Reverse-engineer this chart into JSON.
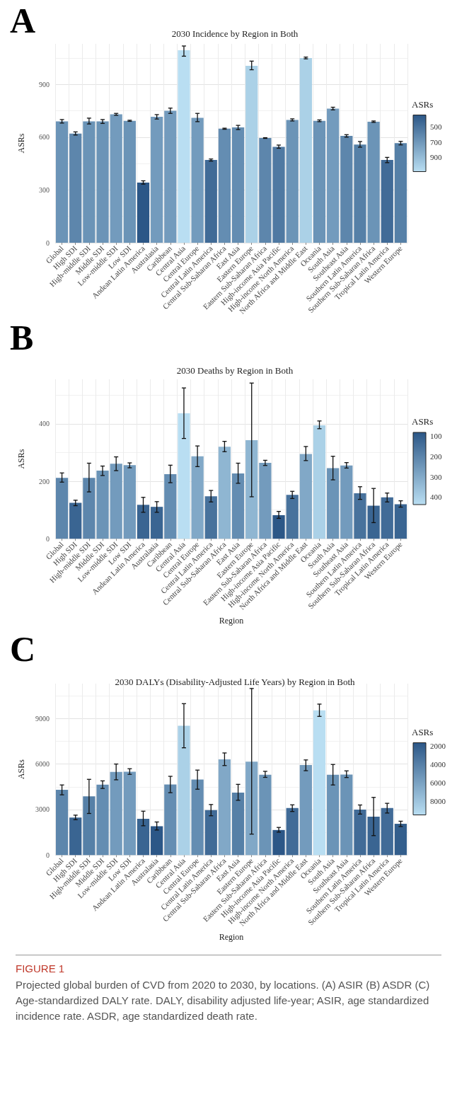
{
  "chart_data": [
    {
      "type": "bar",
      "title": "2030 Incidence by Region in Both",
      "ylabel": "ASRs",
      "legend_title": "ASRs",
      "annotations": [
        "A"
      ],
      "categories": [
        "Global",
        "High SDI",
        "High-middle SDI",
        "Middle SDI",
        "Low-middle SDI",
        "Low SDI",
        "Andean Latin America",
        "Australasia",
        "Caribbean",
        "Central Asia",
        "Central Europe",
        "Central Latin America",
        "Central Sub-Saharan Africa",
        "East Asia",
        "Eastern Europe",
        "Eastern Sub-Saharan Africa",
        "High-income Asia Pacific",
        "High-income North America",
        "North Africa and Middle East",
        "Oceania",
        "South Asia",
        "Southeast Asia",
        "Southern Latin America",
        "Southern Sub-Saharan Africa",
        "Tropical Latin America",
        "Western Europe"
      ],
      "values": [
        690,
        620,
        690,
        690,
        730,
        693,
        342,
        716,
        750,
        1094,
        710,
        470,
        648,
        655,
        1005,
        595,
        545,
        698,
        1050,
        693,
        762,
        607,
        558,
        688,
        470,
        566
      ],
      "errors": [
        [
          680,
          700
        ],
        [
          612,
          630
        ],
        [
          675,
          708
        ],
        [
          678,
          700
        ],
        [
          724,
          735
        ],
        [
          690,
          696
        ],
        [
          333,
          352
        ],
        [
          703,
          728
        ],
        [
          735,
          765
        ],
        [
          1060,
          1118
        ],
        [
          688,
          735
        ],
        [
          464,
          476
        ],
        [
          645,
          651
        ],
        [
          643,
          667
        ],
        [
          983,
          1032
        ],
        [
          593,
          597
        ],
        [
          537,
          555
        ],
        [
          692,
          704
        ],
        [
          1045,
          1055
        ],
        [
          688,
          698
        ],
        [
          755,
          770
        ],
        [
          600,
          614
        ],
        [
          543,
          575
        ],
        [
          684,
          692
        ],
        [
          455,
          485
        ],
        [
          556,
          576
        ]
      ],
      "colors": [
        "#6b94b7",
        "#5d86ac",
        "#6b94b7",
        "#6b94b7",
        "#739bbd",
        "#6b94b7",
        "#2c5787",
        "#739bbd",
        "#739bbd",
        "#b9def2",
        "#739bbd",
        "#416b97",
        "#648db2",
        "#648db2",
        "#abd1e7",
        "#5d86ac",
        "#4f79a2",
        "#6b94b7",
        "#abd1e7",
        "#6b94b7",
        "#739bbd",
        "#5d86ac",
        "#5680a7",
        "#6b94b7",
        "#416b97",
        "#5680a7"
      ],
      "ylim": [
        0,
        1130
      ],
      "yticks": [
        0,
        300,
        600,
        900
      ],
      "grid": true,
      "clim": [
        342,
        1094
      ],
      "cticks": [
        500,
        700,
        900
      ]
    },
    {
      "type": "bar",
      "title": "2030 Deaths by Region in Both",
      "xlabel": "Region",
      "ylabel": "ASRs",
      "legend_title": "ASRs",
      "annotations": [
        "B"
      ],
      "categories": [
        "Global",
        "High SDI",
        "High-middle SDI",
        "Middle SDI",
        "Low-middle SDI",
        "Low SDI",
        "Andean Latin America",
        "Australasia",
        "Caribbean",
        "Central Asia",
        "Central Europe",
        "Central Latin America",
        "Central Sub-Saharan Africa",
        "East Asia",
        "Eastern Europe",
        "Eastern Sub-Saharan Africa",
        "High-income Asia Pacific",
        "High-income North America",
        "North Africa and Middle East",
        "Oceania",
        "South Asia",
        "Southeast Asia",
        "Southern Latin America",
        "Southern Sub-Saharan Africa",
        "Tropical Latin America",
        "Western Europe"
      ],
      "values": [
        212,
        125,
        212,
        237,
        261,
        256,
        118,
        111,
        225,
        437,
        287,
        148,
        320,
        227,
        343,
        264,
        82,
        153,
        295,
        395,
        246,
        255,
        158,
        115,
        144,
        120
      ],
      "errors": [
        [
          197,
          229
        ],
        [
          115,
          134
        ],
        [
          163,
          263
        ],
        [
          220,
          253
        ],
        [
          237,
          285
        ],
        [
          247,
          264
        ],
        [
          92,
          144
        ],
        [
          92,
          129
        ],
        [
          195,
          256
        ],
        [
          349,
          525
        ],
        [
          251,
          323
        ],
        [
          128,
          168
        ],
        [
          303,
          339
        ],
        [
          193,
          263
        ],
        [
          146,
          542
        ],
        [
          255,
          273
        ],
        [
          71,
          95
        ],
        [
          140,
          165
        ],
        [
          272,
          321
        ],
        [
          383,
          410
        ],
        [
          205,
          287
        ],
        [
          246,
          265
        ],
        [
          137,
          181
        ],
        [
          56,
          175
        ],
        [
          128,
          159
        ],
        [
          110,
          132
        ]
      ],
      "colors": [
        "#5d86ac",
        "#3a6592",
        "#5d86ac",
        "#6b94b7",
        "#739bbd",
        "#739bbd",
        "#3a6592",
        "#3a6592",
        "#648db2",
        "#b9def2",
        "#81a8c7",
        "#48729c",
        "#8fb6d2",
        "#648db2",
        "#8fb6d2",
        "#739bbd",
        "#2c5787",
        "#48729c",
        "#81a8c7",
        "#abd1e7",
        "#6b94b7",
        "#739bbd",
        "#48729c",
        "#3a6592",
        "#416b97",
        "#3a6592"
      ],
      "ylim": [
        0,
        555
      ],
      "yticks": [
        0,
        200,
        400
      ],
      "grid": true,
      "clim": [
        82,
        437
      ],
      "cticks": [
        100,
        200,
        300,
        400
      ]
    },
    {
      "type": "bar",
      "title": "2030 DALYs (Disability-Adjusted Life Years) by Region in Both",
      "xlabel": "Region",
      "ylabel": "ASRs",
      "legend_title": "ASRs",
      "annotations": [
        "C",
        "FIGURE 1",
        "Projected global burden of CVD from 2020 to 2030, by locations. (A) ASIR (B) ASDR (C) Age-standardized DALY rate. DALY, disability adjusted life-year; ASIR, age standardized incidence rate. ASDR, age standardized death rate."
      ],
      "categories": [
        "Global",
        "High SDI",
        "High-middle SDI",
        "Middle SDI",
        "Low-middle SDI",
        "Low SDI",
        "Andean Latin America",
        "Australasia",
        "Caribbean",
        "Central Asia",
        "Central Europe",
        "Central Latin America",
        "Central Sub-Saharan Africa",
        "East Asia",
        "Eastern Europe",
        "Eastern Sub-Saharan Africa",
        "High-income Asia Pacific",
        "High-income North America",
        "North Africa and Middle East",
        "Oceania",
        "South Asia",
        "Southeast Asia",
        "Southern Latin America",
        "Southern Sub-Saharan Africa",
        "Tropical Latin America",
        "Western Europe"
      ],
      "values": [
        4300,
        2470,
        3870,
        4640,
        5480,
        5490,
        2390,
        1900,
        4650,
        8520,
        4980,
        2960,
        6310,
        4120,
        6160,
        5290,
        1650,
        3100,
        5930,
        9540,
        5290,
        5300,
        2990,
        2530,
        3100,
        2060
      ],
      "errors": [
        [
          3970,
          4620
        ],
        [
          2330,
          2630
        ],
        [
          2740,
          4990
        ],
        [
          4390,
          4890
        ],
        [
          4960,
          6000
        ],
        [
          5320,
          5690
        ],
        [
          1930,
          2890
        ],
        [
          1650,
          2180
        ],
        [
          4110,
          5190
        ],
        [
          7070,
          9980
        ],
        [
          4340,
          5600
        ],
        [
          2590,
          3330
        ],
        [
          5900,
          6730
        ],
        [
          3610,
          4660
        ],
        [
          1380,
          10980
        ],
        [
          5120,
          5520
        ],
        [
          1510,
          1820
        ],
        [
          2870,
          3310
        ],
        [
          5560,
          6270
        ],
        [
          9140,
          9950
        ],
        [
          4620,
          5970
        ],
        [
          5110,
          5550
        ],
        [
          2700,
          3300
        ],
        [
          1280,
          3800
        ],
        [
          2770,
          3410
        ],
        [
          1880,
          2230
        ]
      ],
      "colors": [
        "#5d86ac",
        "#3a6592",
        "#5680a7",
        "#648db2",
        "#739bbd",
        "#739bbd",
        "#3a6592",
        "#2c5787",
        "#648db2",
        "#abd1e7",
        "#648db2",
        "#416b97",
        "#81a8c7",
        "#5680a7",
        "#81a8c7",
        "#6b94b7",
        "#2c5787",
        "#416b97",
        "#739bbd",
        "#b9def2",
        "#6b94b7",
        "#6b94b7",
        "#416b97",
        "#3a6592",
        "#416b97",
        "#335e8c"
      ],
      "ylim": [
        0,
        11300
      ],
      "yticks": [
        0,
        3000,
        6000,
        9000
      ],
      "grid": true,
      "clim": [
        1650,
        9540
      ],
      "cticks": [
        2000,
        4000,
        6000,
        8000
      ]
    }
  ]
}
